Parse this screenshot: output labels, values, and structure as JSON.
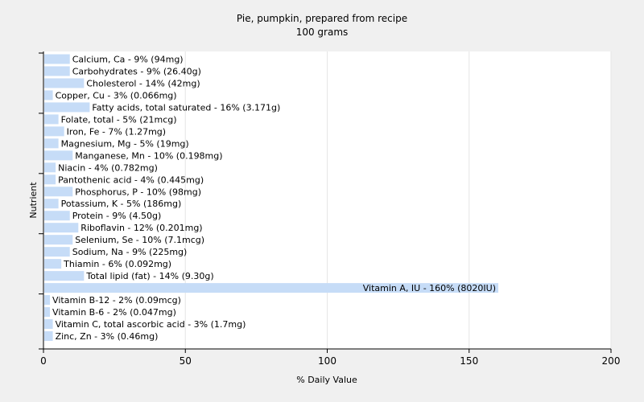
{
  "chart_data": {
    "type": "bar",
    "orientation": "horizontal",
    "title": "Pie, pumpkin, prepared from recipe",
    "subtitle": "100 grams",
    "xlabel": "% Daily Value",
    "ylabel": "Nutrient",
    "xlim": [
      0,
      200
    ],
    "xticks": [
      "0",
      "50",
      "100",
      "150",
      "200"
    ],
    "grid": true,
    "bar_color": "#c6dcf7",
    "categories": [
      "Calcium, Ca",
      "Carbohydrates",
      "Cholesterol",
      "Copper, Cu",
      "Fatty acids, total saturated",
      "Folate, total",
      "Iron, Fe",
      "Magnesium, Mg",
      "Manganese, Mn",
      "Niacin",
      "Pantothenic acid",
      "Phosphorus, P",
      "Potassium, K",
      "Protein",
      "Riboflavin",
      "Selenium, Se",
      "Sodium, Na",
      "Thiamin",
      "Total lipid (fat)",
      "Vitamin A, IU",
      "Vitamin B-12",
      "Vitamin B-6",
      "Vitamin C, total ascorbic acid",
      "Zinc, Zn"
    ],
    "values": [
      9,
      9,
      14,
      3,
      16,
      5,
      7,
      5,
      10,
      4,
      4,
      10,
      5,
      9,
      12,
      10,
      9,
      6,
      14,
      160,
      2,
      2,
      3,
      3
    ],
    "labels": [
      "Calcium, Ca - 9% (94mg)",
      "Carbohydrates - 9% (26.40g)",
      "Cholesterol - 14% (42mg)",
      "Copper, Cu - 3% (0.066mg)",
      "Fatty acids, total saturated - 16% (3.171g)",
      "Folate, total - 5% (21mcg)",
      "Iron, Fe - 7% (1.27mg)",
      "Magnesium, Mg - 5% (19mg)",
      "Manganese, Mn - 10% (0.198mg)",
      "Niacin - 4% (0.782mg)",
      "Pantothenic acid - 4% (0.445mg)",
      "Phosphorus, P - 10% (98mg)",
      "Potassium, K - 5% (186mg)",
      "Protein - 9% (4.50g)",
      "Riboflavin - 12% (0.201mg)",
      "Selenium, Se - 10% (7.1mcg)",
      "Sodium, Na - 9% (225mg)",
      "Thiamin - 6% (0.092mg)",
      "Total lipid (fat) - 14% (9.30g)",
      "Vitamin A, IU - 160% (8020IU)",
      "Vitamin B-12 - 2% (0.09mcg)",
      "Vitamin B-6 - 2% (0.047mg)",
      "Vitamin C, total ascorbic acid - 3% (1.7mg)",
      "Zinc, Zn - 3% (0.46mg)"
    ]
  }
}
